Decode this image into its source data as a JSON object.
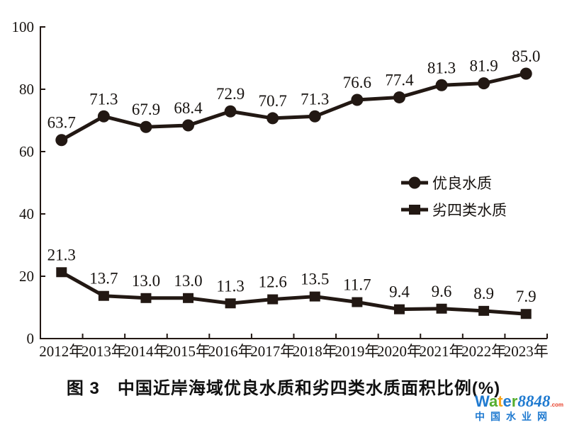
{
  "chart_data": {
    "type": "line",
    "title": "图3 中国近岸海域优良水质和劣四类水质面积比例(%)",
    "xlabel": "",
    "ylabel": "",
    "ylim": [
      0,
      100
    ],
    "y_ticks": [
      0,
      20,
      40,
      60,
      80,
      100
    ],
    "grid": false,
    "legend_position": "middle-right",
    "line_color": "#221813",
    "categories": [
      "2012年",
      "2013年",
      "2014年",
      "2015年",
      "2016年",
      "2017年",
      "2018年",
      "2019年",
      "2020年",
      "2021年",
      "2022年",
      "2023年"
    ],
    "series": [
      {
        "name": "优良水质",
        "marker": "circle",
        "values": [
          63.7,
          71.3,
          67.9,
          68.4,
          72.9,
          70.7,
          71.3,
          76.6,
          77.4,
          81.3,
          81.9,
          85.0
        ]
      },
      {
        "name": "劣四类水质",
        "marker": "square",
        "values": [
          21.3,
          13.7,
          13.0,
          13.0,
          11.3,
          12.6,
          13.5,
          11.7,
          9.4,
          9.6,
          8.9,
          7.9
        ]
      }
    ]
  },
  "caption": {
    "text": "图 3　中国近岸海域优良水质和劣四类水质面积比例(%)"
  },
  "watermark": {
    "brand_letters": [
      {
        "ch": "W",
        "color": "#1f7ad0"
      },
      {
        "ch": "a",
        "color": "#55ae2e"
      },
      {
        "ch": "t",
        "color": "#f7a51b"
      },
      {
        "ch": "e",
        "color": "#1f7ad0"
      },
      {
        "ch": "r",
        "color": "#55ae2e"
      }
    ],
    "brand_suffix": "8848",
    "brand_suffix_color": "#1f7ad0",
    "domain": ".com",
    "domain_color": "#e8402a",
    "subtitle": "中国水业网",
    "subtitle_color": "#1f7ad0"
  }
}
